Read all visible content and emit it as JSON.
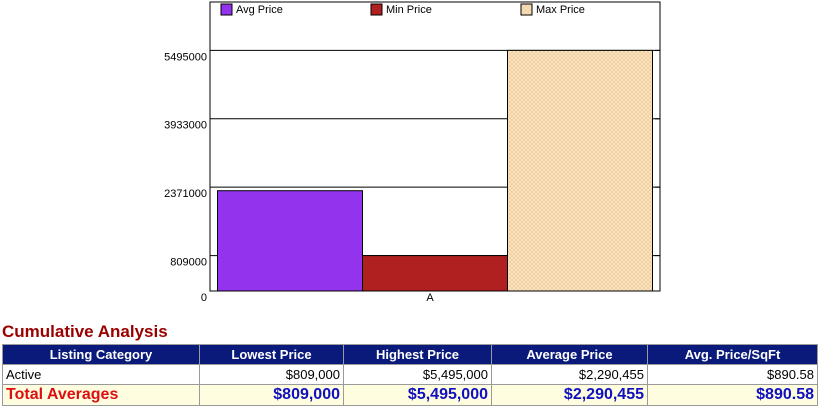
{
  "chart_data": {
    "type": "bar",
    "categories": [
      "A"
    ],
    "series": [
      {
        "name": "Avg Price",
        "color": "#9333ee",
        "values": [
          2290455
        ]
      },
      {
        "name": "Min Price",
        "color": "#b02020",
        "values": [
          809000
        ]
      },
      {
        "name": "Max Price",
        "color": "#fce6c4",
        "values": [
          5495000
        ]
      }
    ],
    "ylim": [
      0,
      6600000
    ],
    "yticks": [
      0,
      809000,
      2371000,
      3933000,
      5495000
    ],
    "grid": true
  },
  "table": {
    "title": "Cumulative Analysis",
    "columns": [
      "Listing Category",
      "Lowest Price",
      "Highest Price",
      "Average Price",
      "Avg. Price/SqFt"
    ],
    "rows": [
      [
        "Active",
        "$809,000",
        "$5,495,000",
        "$2,290,455",
        "$890.58"
      ],
      [
        "Total Averages",
        "$809,000",
        "$5,495,000",
        "$2,290,455",
        "$890.58"
      ]
    ]
  }
}
